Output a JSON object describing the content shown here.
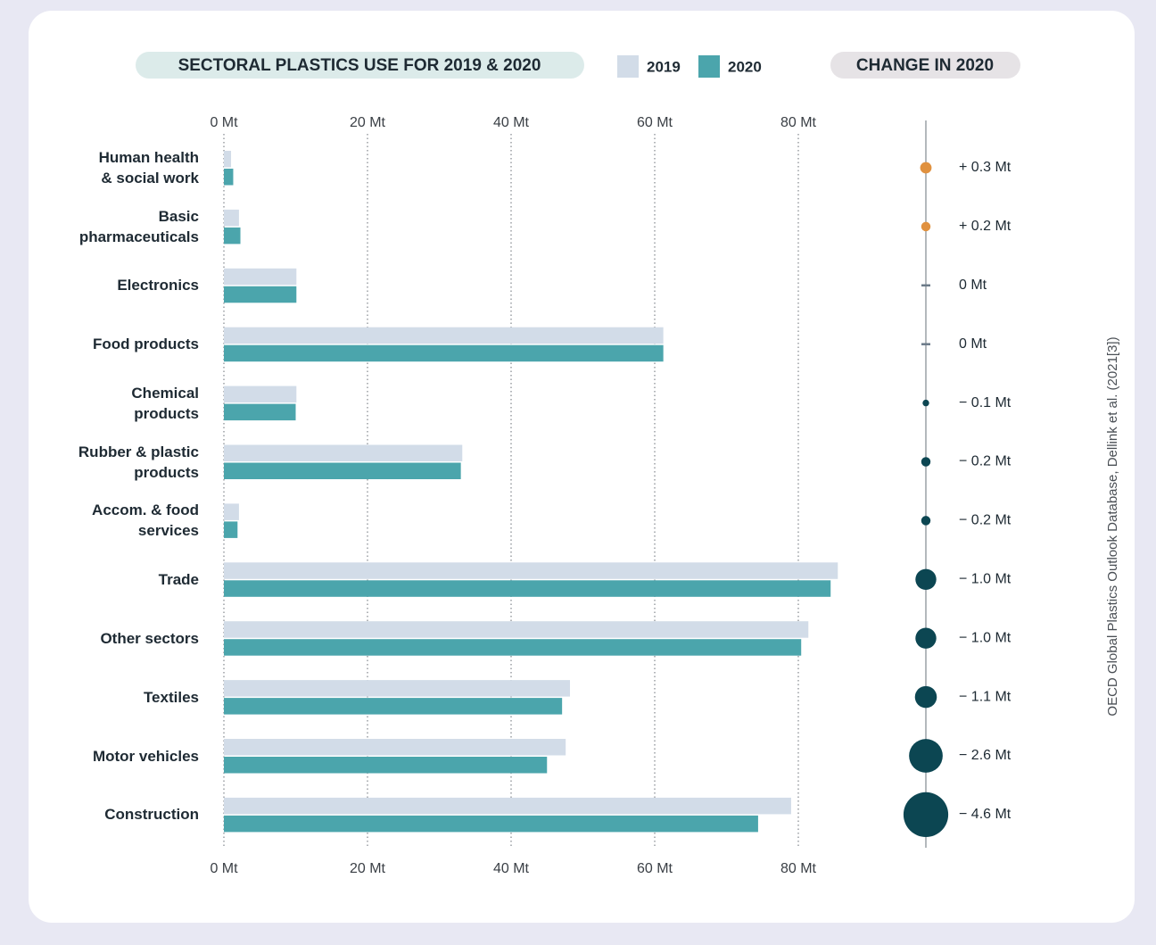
{
  "chart_data": {
    "type": "bar",
    "title": "SECTORAL PLASTICS USE FOR 2019 & 2020",
    "change_title": "CHANGE IN 2020",
    "source": "OECD Global Plastics Outlook Database, Dellink et al. (2021[3])",
    "categories": [
      "Human health\n& social work",
      "Basic\npharmaceuticals",
      "Electronics",
      "Food products",
      "Chemical\nproducts",
      "Rubber & plastic\nproducts",
      "Accom. & food\nservices",
      "Trade",
      "Other sectors",
      "Textiles",
      "Motor vehicles",
      "Construction"
    ],
    "series": [
      {
        "name": "2019",
        "color": "#d2dce8",
        "values": [
          1.0,
          2.1,
          10.1,
          61.2,
          10.1,
          33.2,
          2.1,
          85.5,
          81.4,
          48.2,
          47.6,
          79.0
        ]
      },
      {
        "name": "2020",
        "color": "#4ba5ac",
        "values": [
          1.3,
          2.3,
          10.1,
          61.2,
          10.0,
          33.0,
          1.9,
          84.5,
          80.4,
          47.1,
          45.0,
          74.4
        ]
      }
    ],
    "change": {
      "values": [
        0.3,
        0.2,
        0,
        0,
        -0.1,
        -0.2,
        -0.2,
        -1.0,
        -1.0,
        -1.1,
        -2.6,
        -4.6
      ],
      "value_labels": [
        "+ 0.3 Mt",
        "+ 0.2 Mt",
        "0 Mt",
        "0 Mt",
        "− 0.1 Mt",
        "− 0.2 Mt",
        "− 0.2 Mt",
        "− 1.0 Mt",
        "− 1.0 Mt",
        "− 1.1 Mt",
        "− 2.6 Mt",
        "− 4.6 Mt"
      ],
      "positive_color": "#e0913f",
      "negative_color": "#0c4652",
      "zero_color": "#6b7a88"
    },
    "xlim": [
      0,
      90
    ],
    "xticks": [
      {
        "value": 0,
        "label": "0 Mt"
      },
      {
        "value": 20,
        "label": "20 Mt"
      },
      {
        "value": 40,
        "label": "40 Mt"
      },
      {
        "value": 60,
        "label": "60 Mt"
      },
      {
        "value": 80,
        "label": "80 Mt"
      }
    ],
    "grid": true
  }
}
